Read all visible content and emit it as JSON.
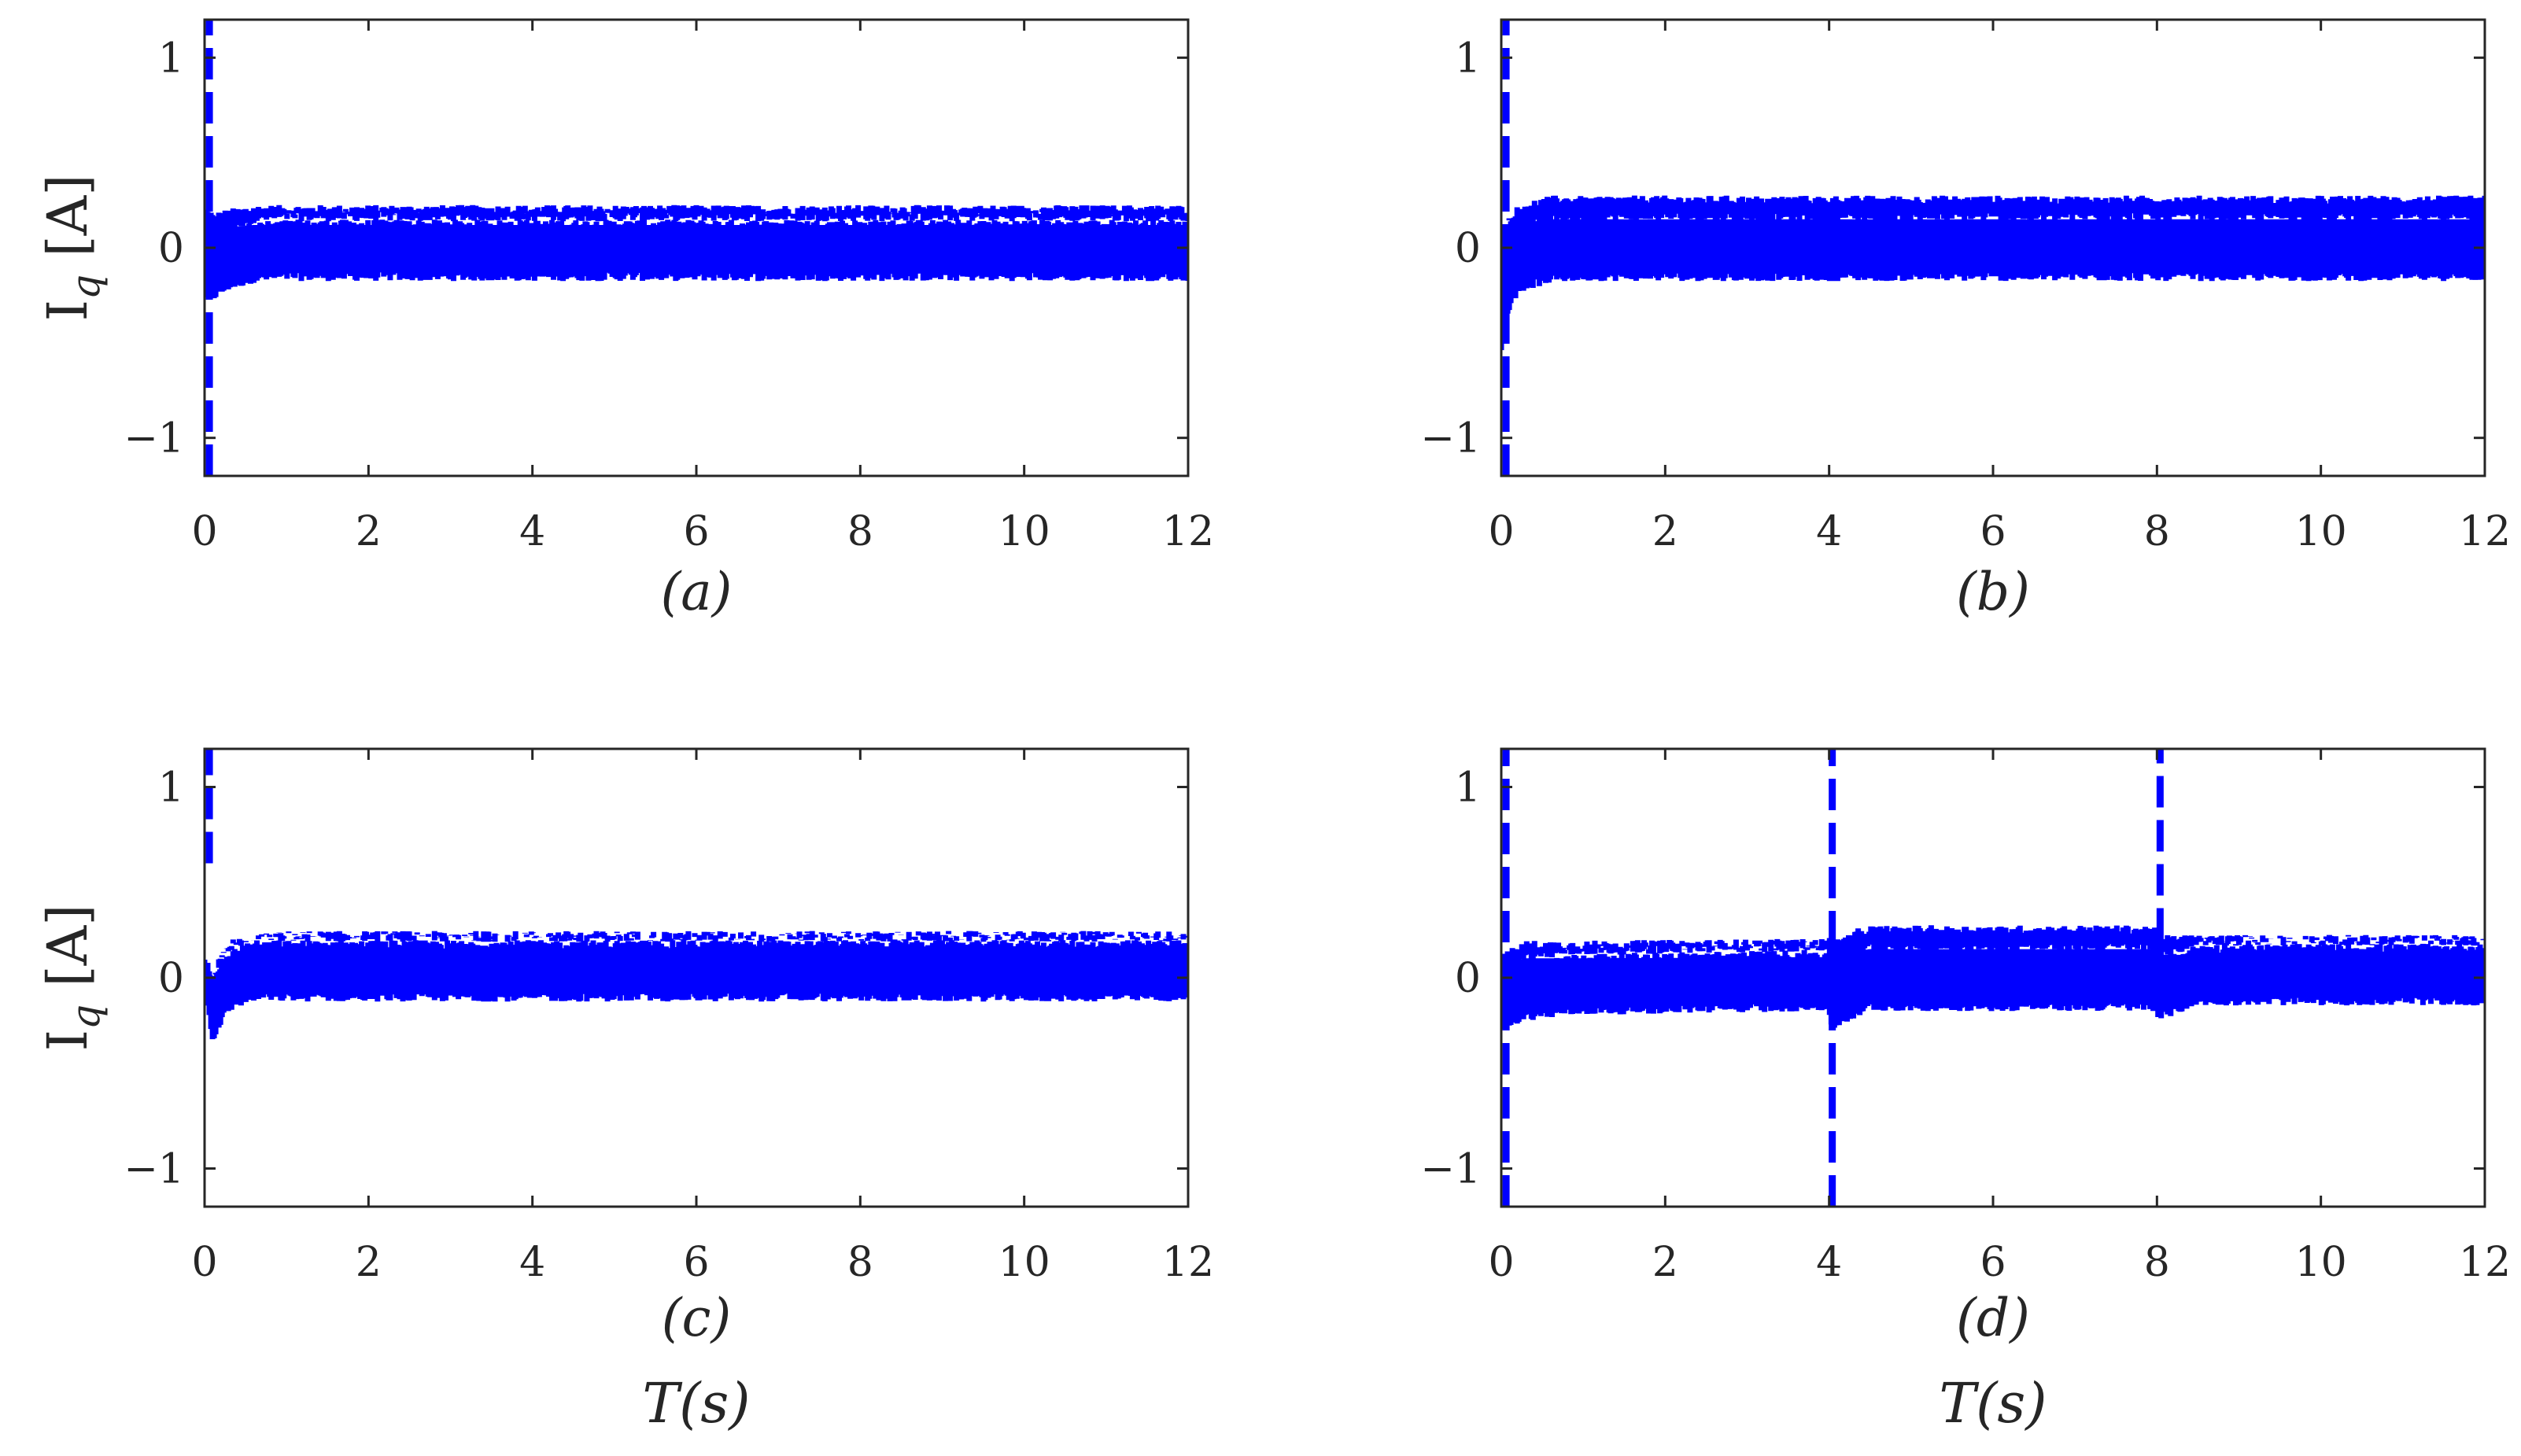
{
  "figure": {
    "panels": [
      "(a)",
      "(b)",
      "(c)",
      "(d)"
    ]
  },
  "colors": {
    "series": "#0000ff",
    "axes": "#262626"
  },
  "chart_data": [
    {
      "type": "line",
      "panel": "(a)",
      "xlabel": "",
      "ylabel": "Iq [A]",
      "xlim": [
        0,
        12
      ],
      "ylim": [
        -1.2,
        1.2
      ],
      "xticks": [
        0,
        2,
        4,
        6,
        8,
        10,
        12
      ],
      "yticks": [
        -1,
        0,
        1
      ],
      "grid": false,
      "line_style": "dashed",
      "band": {
        "upper": 0.2,
        "lower": -0.15
      },
      "events": [
        {
          "type": "band-edges",
          "x": [
            0,
            0.12,
            0.3,
            0.6,
            1.0,
            12
          ],
          "upper": [
            0.2,
            0.16,
            0.18,
            0.2,
            0.2,
            0.2
          ],
          "lower": [
            -0.25,
            -0.25,
            -0.2,
            -0.16,
            -0.15,
            -0.15
          ]
        },
        {
          "type": "spike",
          "x": 0.02,
          "from": -1.2,
          "to": 1.2
        }
      ]
    },
    {
      "type": "line",
      "panel": "(b)",
      "xlabel": "",
      "ylabel": "",
      "xlim": [
        0,
        12
      ],
      "ylim": [
        -1.2,
        1.2
      ],
      "xticks": [
        0,
        2,
        4,
        6,
        8,
        10,
        12
      ],
      "yticks": [
        -1,
        0,
        1
      ],
      "grid": false,
      "line_style": "dashed",
      "band": {
        "upper": 0.25,
        "lower": -0.15
      },
      "events": [
        {
          "type": "band-edges",
          "x": [
            0,
            0.05,
            0.15,
            0.3,
            0.6,
            1.0,
            12
          ],
          "upper": [
            0.05,
            0.12,
            0.18,
            0.22,
            0.25,
            0.25,
            0.25
          ],
          "lower": [
            -0.55,
            -0.35,
            -0.25,
            -0.2,
            -0.16,
            -0.15,
            -0.15
          ]
        },
        {
          "type": "spike",
          "x": 0.02,
          "from": -1.2,
          "to": 1.2
        }
      ]
    },
    {
      "type": "line",
      "panel": "(c)",
      "xlabel": "T(s)",
      "ylabel": "Iq [A]",
      "xlim": [
        0,
        12
      ],
      "ylim": [
        -1.2,
        1.2
      ],
      "xticks": [
        0,
        2,
        4,
        6,
        8,
        10,
        12
      ],
      "yticks": [
        -1,
        0,
        1
      ],
      "grid": false,
      "line_style": "dashed",
      "band": {
        "upper": 0.22,
        "lower": -0.1
      },
      "events": [
        {
          "type": "band-edges",
          "x": [
            0,
            0.1,
            0.2,
            0.35,
            0.6,
            1.0,
            12
          ],
          "upper": [
            0.1,
            0.0,
            0.1,
            0.18,
            0.2,
            0.22,
            0.22
          ],
          "lower": [
            0.0,
            -0.32,
            -0.22,
            -0.14,
            -0.1,
            -0.1,
            -0.1
          ]
        },
        {
          "type": "spike",
          "x": 0.02,
          "from": 0.6,
          "to": 1.2
        }
      ]
    },
    {
      "type": "line",
      "panel": "(d)",
      "xlabel": "T(s)",
      "ylabel": "",
      "xlim": [
        0,
        12
      ],
      "ylim": [
        -1.2,
        1.2
      ],
      "xticks": [
        0,
        2,
        4,
        6,
        8,
        10,
        12
      ],
      "yticks": [
        -1,
        0,
        1
      ],
      "grid": false,
      "line_style": "dashed",
      "band": {
        "upper": 0.22,
        "lower": -0.12
      },
      "events": [
        {
          "type": "band-edges",
          "x": [
            0,
            0.3,
            1.0,
            3.95,
            4.05,
            4.5,
            7.95,
            8.05,
            8.5,
            12
          ],
          "upper": [
            0.1,
            0.17,
            0.17,
            0.18,
            0.2,
            0.25,
            0.25,
            0.2,
            0.2,
            0.2
          ],
          "lower": [
            -0.25,
            -0.2,
            -0.17,
            -0.15,
            -0.25,
            -0.15,
            -0.15,
            -0.2,
            -0.12,
            -0.12
          ]
        },
        {
          "type": "spike",
          "x": 0.02,
          "from": -1.2,
          "to": 1.2
        },
        {
          "type": "spike",
          "x": 4.0,
          "from": -1.2,
          "to": 1.2
        },
        {
          "type": "spike",
          "x": 8.0,
          "from": 0.2,
          "to": 1.2
        }
      ]
    }
  ]
}
